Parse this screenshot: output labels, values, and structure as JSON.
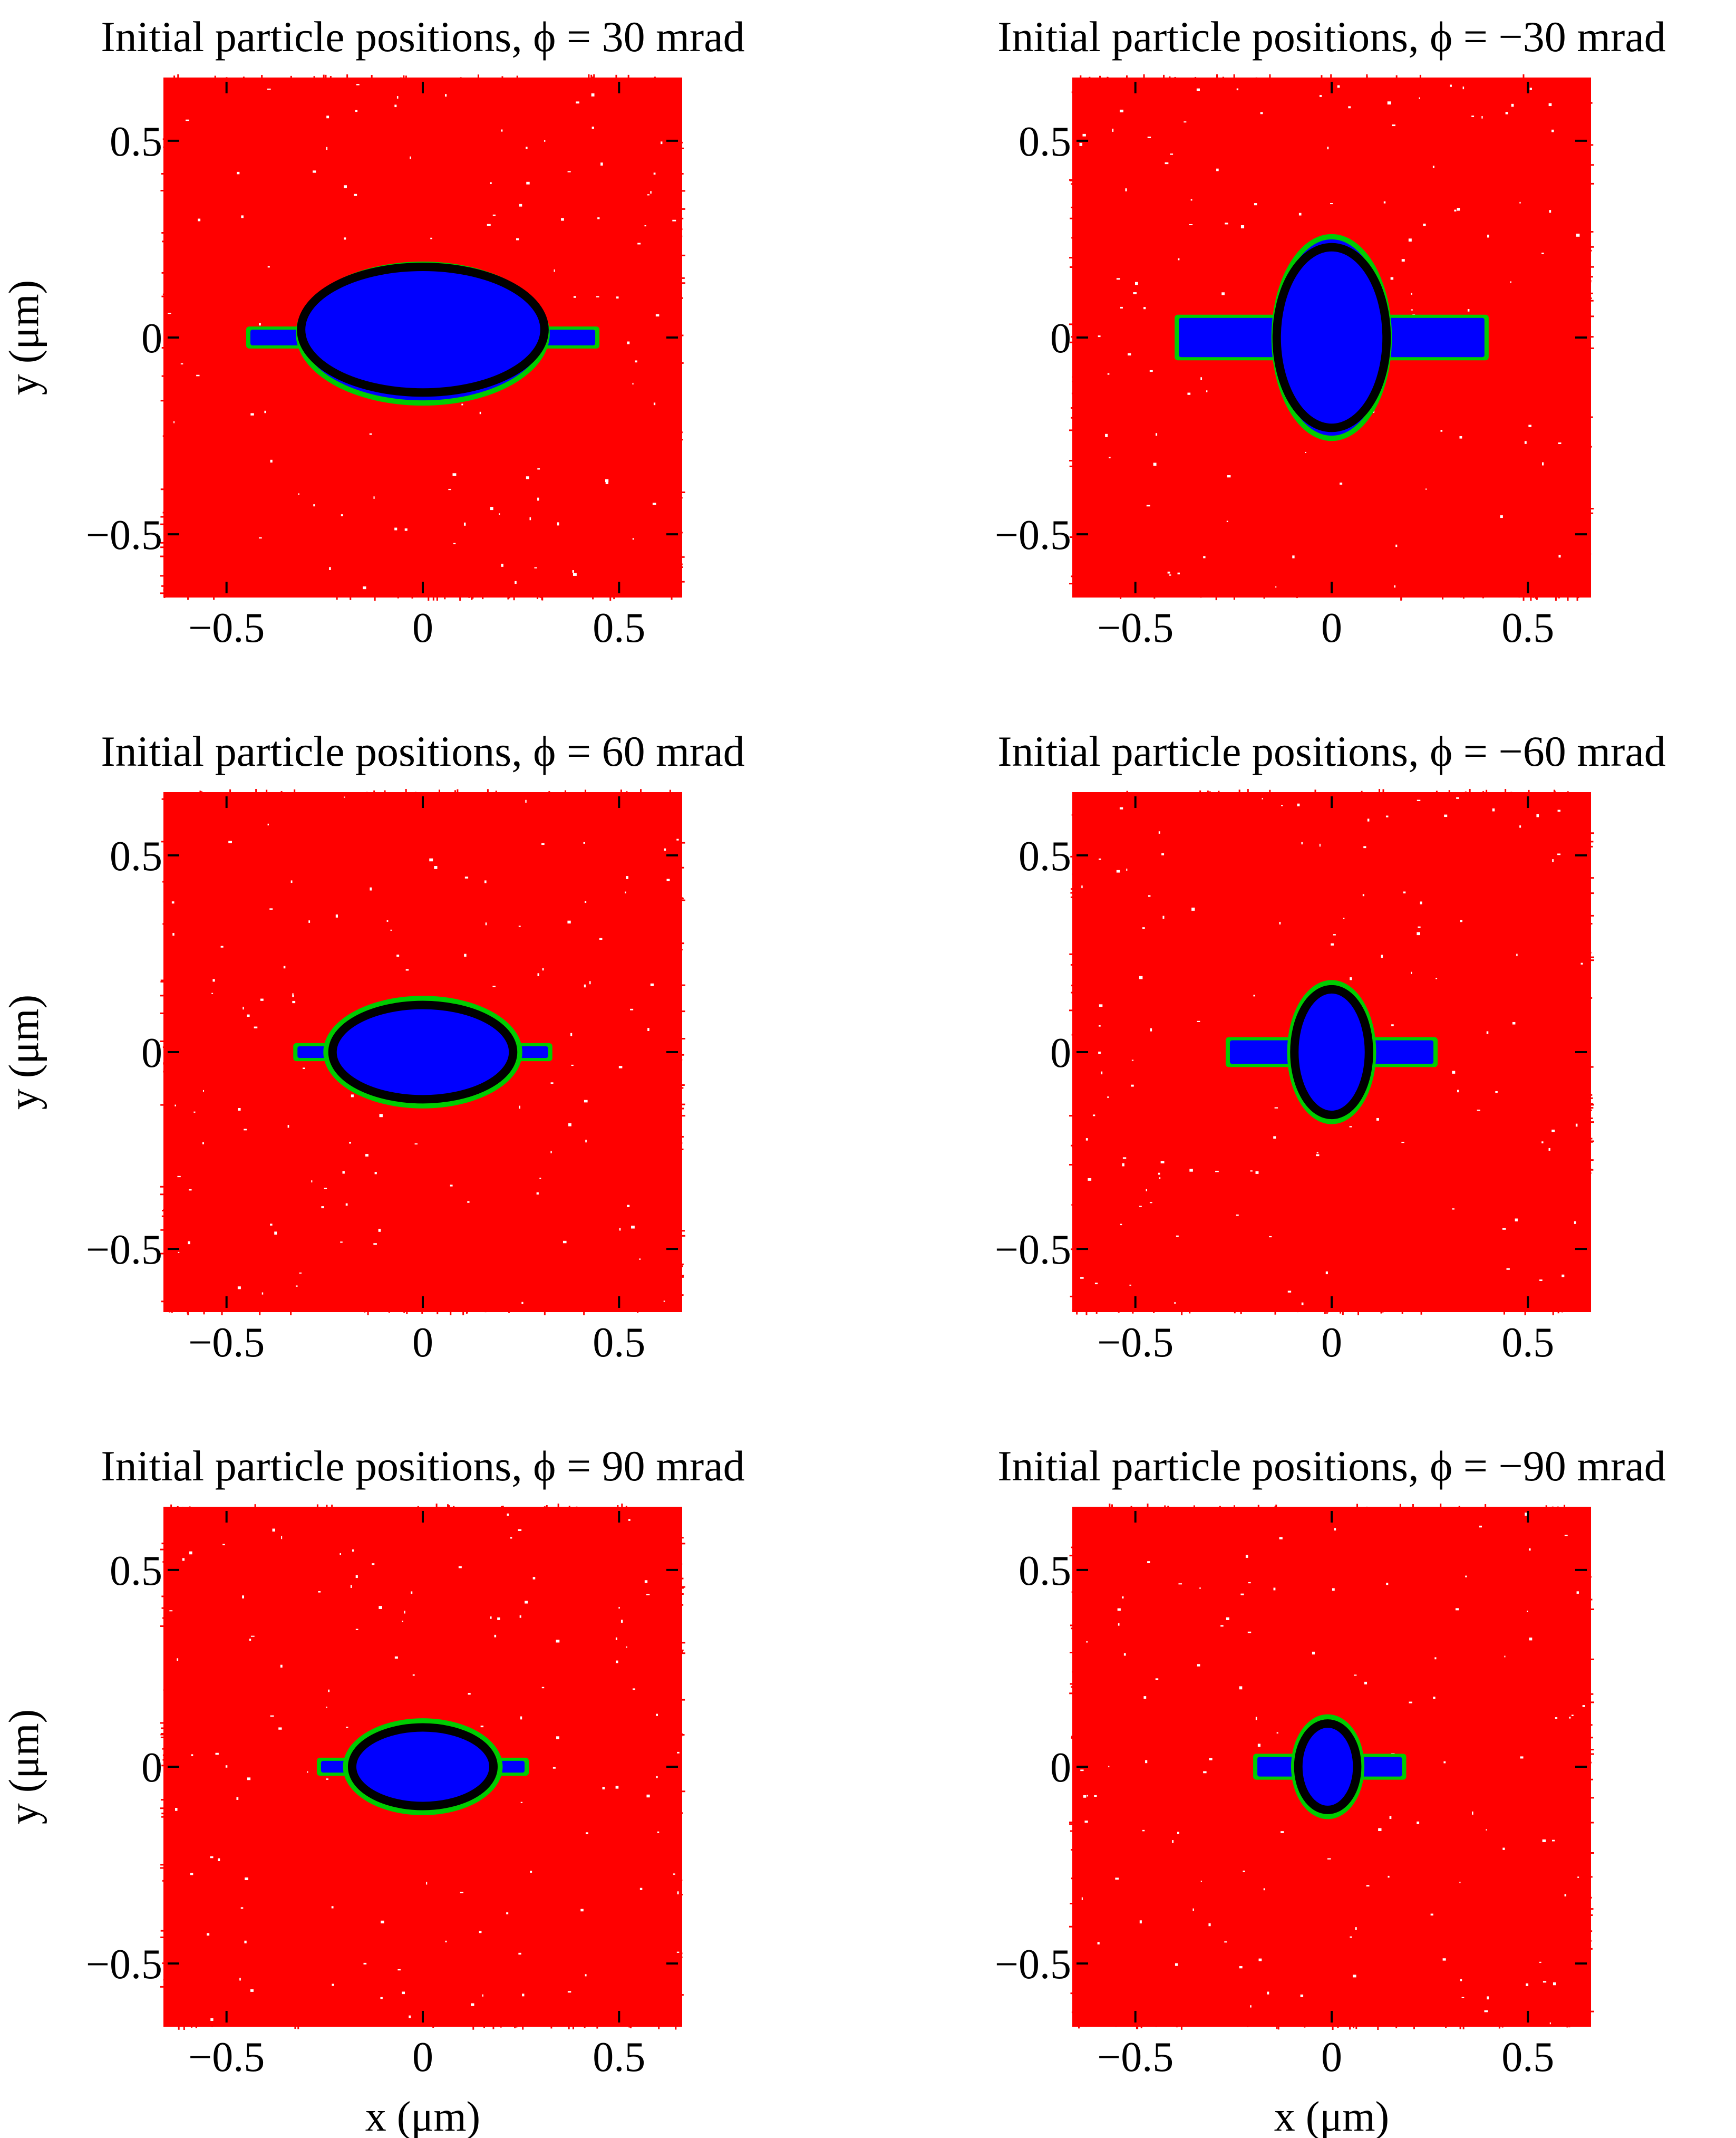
{
  "figure": {
    "x_axis_label": "x (μm)",
    "y_axis_label": "y (μm)"
  },
  "colors": {
    "outer_particles": "#ff0000",
    "inner_particles": "#0000ff",
    "boundary_particles": "#00cc00",
    "ellipse": "#000000"
  },
  "chart_data": [
    {
      "type": "scatter",
      "title": "Initial particle positions, ϕ = 30 mrad",
      "xlabel": "",
      "ylabel": "y (μm)",
      "xlim": [
        -0.65,
        0.65
      ],
      "ylim": [
        -0.65,
        0.65
      ],
      "xticks": [
        -0.5,
        0,
        0.5
      ],
      "yticks": [
        -0.5,
        0,
        0.5
      ],
      "xtick_labels": [
        "−0.5",
        "0",
        "0.5"
      ],
      "ytick_labels": [
        "−0.5",
        "0",
        "0.5"
      ],
      "ellipse": {
        "cx": 0.0,
        "cy": 0.02,
        "rx": 0.31,
        "ry": 0.16
      },
      "inner_region": {
        "cx": 0.0,
        "cy": 0.01,
        "rx": 0.31,
        "ry": 0.17
      },
      "wings": [
        {
          "x0": -0.45,
          "x1": 0.45,
          "half_height": 0.02
        }
      ]
    },
    {
      "type": "scatter",
      "title": "Initial particle positions, ϕ = −30 mrad",
      "xlabel": "",
      "ylabel": "",
      "xlim": [
        -0.65,
        0.65
      ],
      "ylim": [
        -0.65,
        0.65
      ],
      "xticks": [
        -0.5,
        0,
        0.5
      ],
      "yticks": [
        -0.5,
        0,
        0.5
      ],
      "xtick_labels": [
        "−0.5",
        "0",
        "0.5"
      ],
      "ytick_labels": [
        "−0.5",
        "0",
        "0.5"
      ],
      "ellipse": {
        "cx": 0.0,
        "cy": 0.0,
        "rx": 0.14,
        "ry": 0.23
      },
      "inner_region": {
        "cx": 0.0,
        "cy": 0.0,
        "rx": 0.14,
        "ry": 0.25
      },
      "wings": [
        {
          "x0": -0.4,
          "x1": 0.4,
          "half_height": 0.05
        }
      ]
    },
    {
      "type": "scatter",
      "title": "Initial particle positions, ϕ = 60 mrad",
      "xlabel": "",
      "ylabel": "y (μm)",
      "xlim": [
        -0.65,
        0.65
      ],
      "ylim": [
        -0.65,
        0.65
      ],
      "xticks": [
        -0.5,
        0,
        0.5
      ],
      "yticks": [
        -0.5,
        0,
        0.5
      ],
      "xtick_labels": [
        "−0.5",
        "0",
        "0.5"
      ],
      "ytick_labels": [
        "−0.5",
        "0",
        "0.5"
      ],
      "ellipse": {
        "cx": 0.0,
        "cy": 0.0,
        "rx": 0.23,
        "ry": 0.12
      },
      "inner_region": {
        "cx": 0.0,
        "cy": 0.0,
        "rx": 0.24,
        "ry": 0.13
      },
      "wings": [
        {
          "x0": -0.33,
          "x1": 0.33,
          "half_height": 0.015
        }
      ]
    },
    {
      "type": "scatter",
      "title": "Initial particle positions, ϕ = −60 mrad",
      "xlabel": "",
      "ylabel": "",
      "xlim": [
        -0.65,
        0.65
      ],
      "ylim": [
        -0.65,
        0.65
      ],
      "xticks": [
        -0.5,
        0,
        0.5
      ],
      "yticks": [
        -0.5,
        0,
        0.5
      ],
      "xtick_labels": [
        "−0.5",
        "0",
        "0.5"
      ],
      "ytick_labels": [
        "−0.5",
        "0",
        "0.5"
      ],
      "ellipse": {
        "cx": 0.0,
        "cy": 0.0,
        "rx": 0.095,
        "ry": 0.16
      },
      "inner_region": {
        "cx": 0.0,
        "cy": 0.0,
        "rx": 0.1,
        "ry": 0.17
      },
      "wings": [
        {
          "x0": -0.27,
          "x1": 0.27,
          "half_height": 0.03
        }
      ]
    },
    {
      "type": "scatter",
      "title": "Initial particle positions, ϕ = 90 mrad",
      "xlabel": "x (μm)",
      "ylabel": "y (μm)",
      "xlim": [
        -0.65,
        0.65
      ],
      "ylim": [
        -0.65,
        0.65
      ],
      "xticks": [
        -0.5,
        0,
        0.5
      ],
      "yticks": [
        -0.5,
        0,
        0.5
      ],
      "xtick_labels": [
        "−0.5",
        "0",
        "0.5"
      ],
      "ytick_labels": [
        "−0.5",
        "0",
        "0.5"
      ],
      "ellipse": {
        "cx": 0.0,
        "cy": 0.0,
        "rx": 0.18,
        "ry": 0.1
      },
      "inner_region": {
        "cx": 0.0,
        "cy": 0.0,
        "rx": 0.19,
        "ry": 0.11
      },
      "wings": [
        {
          "x0": -0.27,
          "x1": 0.27,
          "half_height": 0.015
        }
      ]
    },
    {
      "type": "scatter",
      "title": "Initial particle positions, ϕ = −90 mrad",
      "xlabel": "x (μm)",
      "ylabel": "",
      "xlim": [
        -0.65,
        0.65
      ],
      "ylim": [
        -0.65,
        0.65
      ],
      "xticks": [
        -0.5,
        0,
        0.5
      ],
      "yticks": [
        -0.5,
        0,
        0.5
      ],
      "xtick_labels": [
        "−0.5",
        "0",
        "0.5"
      ],
      "ytick_labels": [
        "−0.5",
        "0",
        "0.5"
      ],
      "ellipse": {
        "cx": -0.01,
        "cy": 0.0,
        "rx": 0.075,
        "ry": 0.11
      },
      "inner_region": {
        "cx": -0.01,
        "cy": 0.0,
        "rx": 0.08,
        "ry": 0.12
      },
      "wings": [
        {
          "x0": -0.2,
          "x1": 0.19,
          "half_height": 0.025
        }
      ]
    }
  ]
}
